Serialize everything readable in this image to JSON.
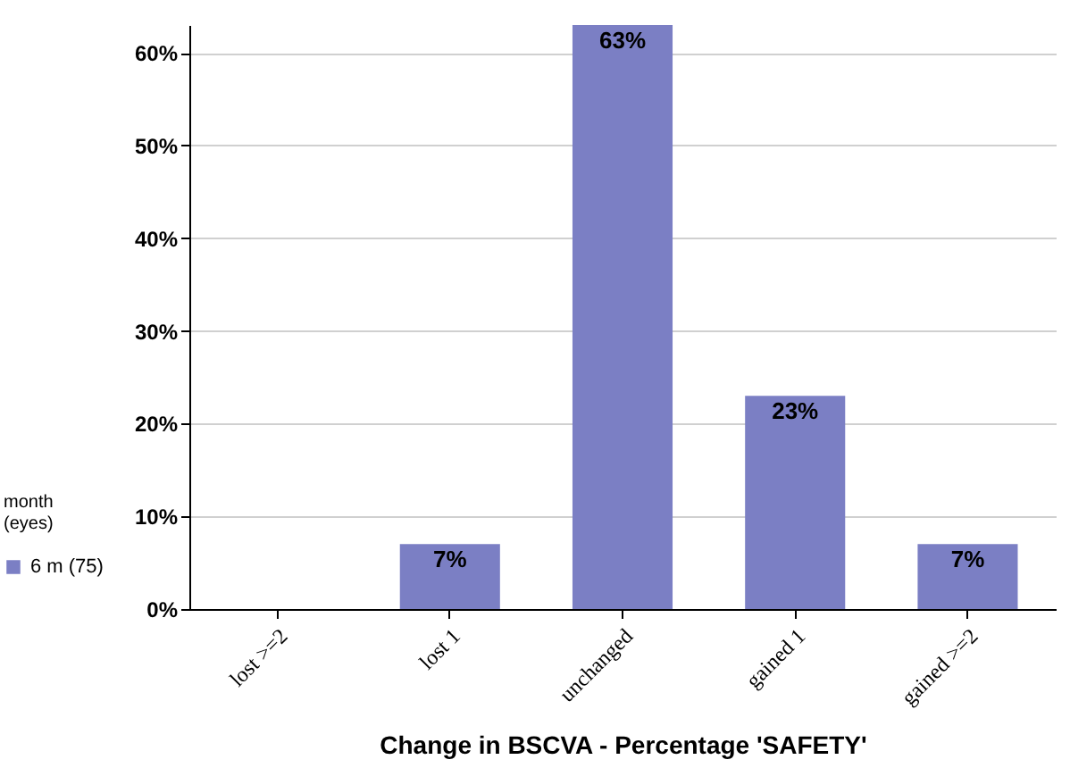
{
  "chart_data": {
    "type": "bar",
    "xlabel": "Change in BSCVA - Percentage 'SAFETY'",
    "legend_title": "month\n(eyes)",
    "legend": "left",
    "grid": "y",
    "categories": [
      "lost >=2",
      "lost 1",
      "unchanged",
      "gained 1",
      "gained >=2"
    ],
    "series": [
      {
        "name": "6 m (75)",
        "color": "#7b7fc4",
        "values": [
          0,
          7,
          63,
          23,
          7
        ],
        "value_labels": [
          null,
          "7%",
          "63%",
          "23%",
          "7%"
        ]
      }
    ],
    "ylim": [
      0,
      63
    ],
    "yticks": [
      {
        "value": 0,
        "label": "0%"
      },
      {
        "value": 10,
        "label": "10%"
      },
      {
        "value": 20,
        "label": "20%"
      },
      {
        "value": 30,
        "label": "30%"
      },
      {
        "value": 40,
        "label": "40%"
      },
      {
        "value": 50,
        "label": "50%"
      },
      {
        "value": 60,
        "label": "60%"
      }
    ]
  }
}
